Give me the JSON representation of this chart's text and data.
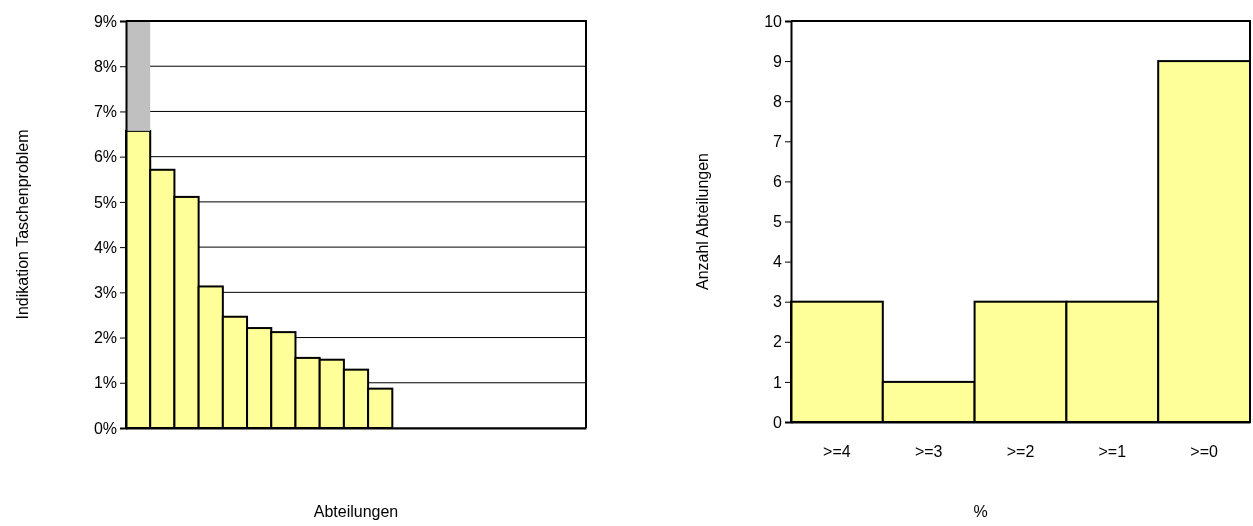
{
  "chart_data": [
    {
      "type": "bar",
      "stacked": true,
      "xlabel": "Abteilungen",
      "ylabel": "Indikation Taschenproblem",
      "categories": [
        null,
        null,
        null,
        null,
        null,
        null,
        null,
        null,
        null,
        null,
        null,
        null,
        null,
        null,
        null,
        null,
        null,
        null,
        null
      ],
      "series": [
        {
          "color": "#ffff99",
          "values": [
            6.57,
            5.71,
            5.11,
            3.13,
            2.46,
            2.21,
            2.12,
            1.55,
            1.51,
            1.29,
            0.87,
            0,
            0,
            0,
            0,
            0,
            0,
            0,
            0
          ]
        },
        {
          "color": "#c0c0c0",
          "values": [
            2.43,
            null,
            null,
            null,
            null,
            null,
            null,
            null,
            null,
            null,
            null,
            null,
            null,
            null,
            null,
            null,
            null,
            null,
            null
          ]
        }
      ],
      "ylim": [
        0,
        9
      ],
      "yticks": [
        {
          "value": 0,
          "label": "0%"
        },
        {
          "value": 1,
          "label": "1%"
        },
        {
          "value": 2,
          "label": "2%"
        },
        {
          "value": 3,
          "label": "3%"
        },
        {
          "value": 4,
          "label": "4%"
        },
        {
          "value": 5,
          "label": "5%"
        },
        {
          "value": 6,
          "label": "6%"
        },
        {
          "value": 7,
          "label": "7%"
        },
        {
          "value": 8,
          "label": "8%"
        },
        {
          "value": 9,
          "label": "9%"
        }
      ],
      "grid": "y"
    },
    {
      "type": "bar",
      "xlabel": "%",
      "ylabel": "Anzahl Abteilungen",
      "categories": [
        ">=4",
        ">=3",
        ">=2",
        ">=1",
        ">=0"
      ],
      "series": [
        {
          "color": "#ffff99",
          "values": [
            3,
            1,
            3,
            3,
            9
          ]
        }
      ],
      "ylim": [
        0,
        10
      ],
      "yticks": [
        0,
        1,
        2,
        3,
        4,
        5,
        6,
        7,
        8,
        9,
        10
      ],
      "grid": false
    }
  ]
}
